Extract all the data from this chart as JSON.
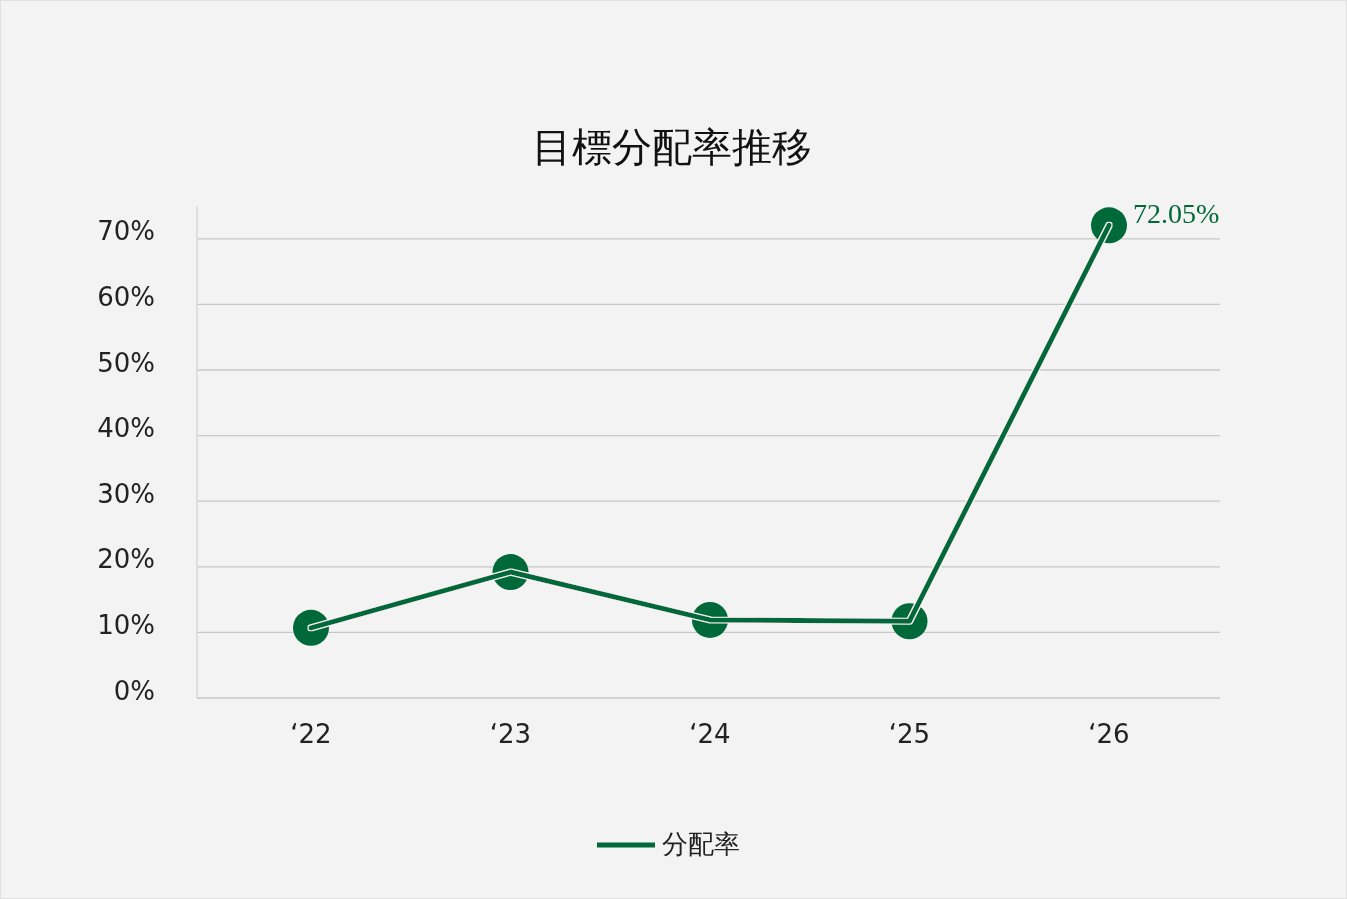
{
  "chart_data": {
    "type": "line",
    "title": "目標分配率推移",
    "categories": [
      "‘22",
      "‘23",
      "‘24",
      "‘25",
      "‘26"
    ],
    "series": [
      {
        "name": "分配率",
        "color": "#00693a",
        "values": [
          10.7,
          19.2,
          11.9,
          11.7,
          72.05
        ],
        "value_labels": [
          null,
          null,
          null,
          null,
          "72.05%"
        ]
      }
    ],
    "ylim": [
      0,
      75
    ],
    "yticks": [
      {
        "value": 0,
        "label": "0%"
      },
      {
        "value": 10,
        "label": "10%"
      },
      {
        "value": 20,
        "label": "20%"
      },
      {
        "value": 30,
        "label": "30%"
      },
      {
        "value": 40,
        "label": "40%"
      },
      {
        "value": 50,
        "label": "50%"
      },
      {
        "value": 60,
        "label": "60%"
      },
      {
        "value": 70,
        "label": "70%"
      }
    ],
    "grid": "y",
    "legend": "bottom",
    "marker": "circle",
    "line_style": "solid"
  }
}
